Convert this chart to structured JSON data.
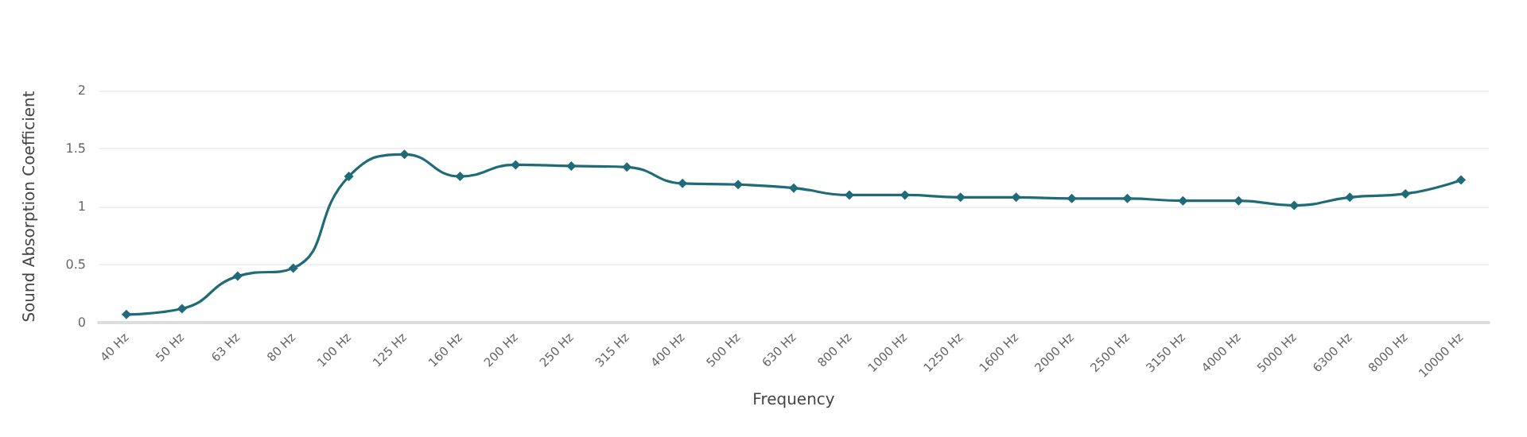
{
  "chart_data": {
    "type": "line",
    "xlabel": "Frequency",
    "ylabel": "Sound Absorption Coefficient",
    "categories": [
      "40 Hz",
      "50 Hz",
      "63 Hz",
      "80 Hz",
      "100 Hz",
      "125 Hz",
      "160 Hz",
      "200 Hz",
      "250 Hz",
      "315 Hz",
      "400 Hz",
      "500 Hz",
      "630 Hz",
      "800 Hz",
      "1000 Hz",
      "1250 Hz",
      "1600 Hz",
      "2000 Hz",
      "2500 Hz",
      "3150 Hz",
      "4000 Hz",
      "5000 Hz",
      "6300 Hz",
      "8000 Hz",
      "10000 Hz"
    ],
    "series": [
      {
        "color": "#1f6b78",
        "values": [
          0.07,
          0.12,
          0.4,
          0.47,
          1.26,
          1.45,
          1.26,
          1.36,
          1.35,
          1.34,
          1.2,
          1.19,
          1.16,
          1.1,
          1.1,
          1.08,
          1.08,
          1.07,
          1.07,
          1.05,
          1.05,
          1.01,
          1.08,
          1.11,
          1.23
        ]
      }
    ],
    "ylim": [
      0,
      2
    ],
    "yticks": [
      0,
      0.5,
      1,
      1.5,
      2
    ],
    "grid": "y",
    "marker": "diamond",
    "line_style": "solid"
  }
}
